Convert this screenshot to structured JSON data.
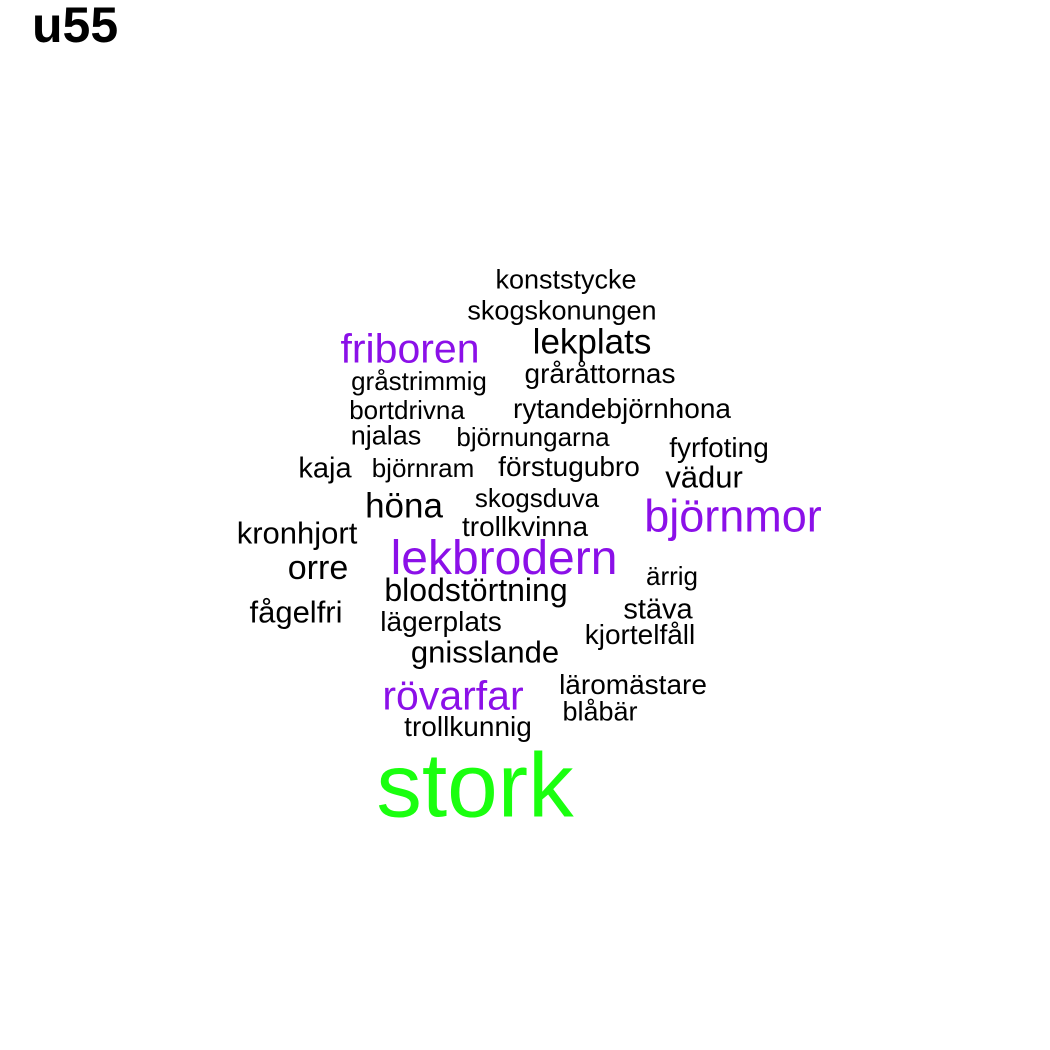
{
  "title": "u55",
  "colors": {
    "default": "#000000",
    "highlight": "#8b10e8",
    "top": "#1aff0f"
  },
  "words": [
    {
      "text": "konststycke",
      "style": "black"
    },
    {
      "text": "skogskonungen",
      "style": "black"
    },
    {
      "text": "friboren",
      "style": "purple"
    },
    {
      "text": "lekplats",
      "style": "black"
    },
    {
      "text": "gråstrimmig",
      "style": "black"
    },
    {
      "text": "gråråttornas",
      "style": "black"
    },
    {
      "text": "bortdrivna",
      "style": "black"
    },
    {
      "text": "rytandebjörnhona",
      "style": "black"
    },
    {
      "text": "njalas",
      "style": "black"
    },
    {
      "text": "björnungarna",
      "style": "black"
    },
    {
      "text": "fyrfoting",
      "style": "black"
    },
    {
      "text": "kaja",
      "style": "black"
    },
    {
      "text": "björnram",
      "style": "black"
    },
    {
      "text": "förstugubro",
      "style": "black"
    },
    {
      "text": "vädur",
      "style": "black"
    },
    {
      "text": "höna",
      "style": "black"
    },
    {
      "text": "skogsduva",
      "style": "black"
    },
    {
      "text": "björnmor",
      "style": "purple"
    },
    {
      "text": "kronhjort",
      "style": "black"
    },
    {
      "text": "trollkvinna",
      "style": "black"
    },
    {
      "text": "lekbrodern",
      "style": "purple"
    },
    {
      "text": "orre",
      "style": "black"
    },
    {
      "text": "ärrig",
      "style": "black"
    },
    {
      "text": "blodstörtning",
      "style": "black"
    },
    {
      "text": "fågelfri",
      "style": "black"
    },
    {
      "text": "stäva",
      "style": "black"
    },
    {
      "text": "lägerplats",
      "style": "black"
    },
    {
      "text": "kjortelfåll",
      "style": "black"
    },
    {
      "text": "gnisslande",
      "style": "black"
    },
    {
      "text": "läromästare",
      "style": "black"
    },
    {
      "text": "rövarfar",
      "style": "purple"
    },
    {
      "text": "blåbär",
      "style": "black"
    },
    {
      "text": "trollkunnig",
      "style": "black"
    },
    {
      "text": "stork",
      "style": "green"
    }
  ]
}
